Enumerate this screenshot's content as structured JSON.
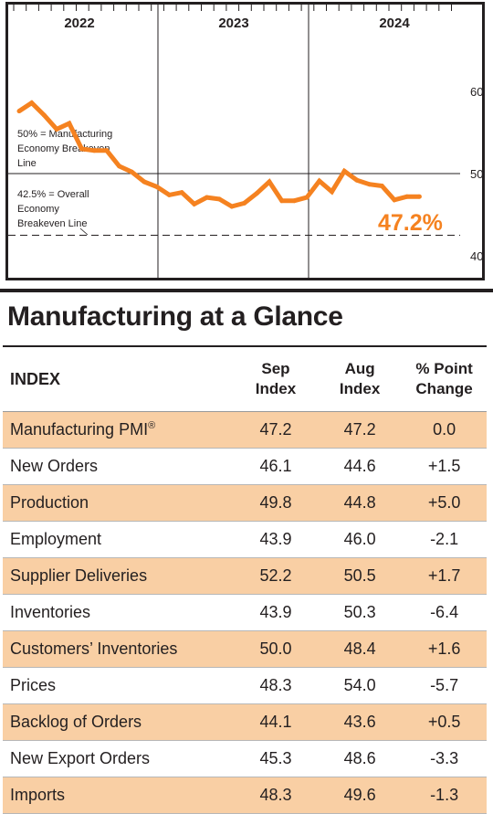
{
  "chart_data": {
    "type": "line",
    "year_labels": [
      "2022",
      "2023",
      "2024"
    ],
    "y_ticks": [
      "60",
      "50",
      "40"
    ],
    "ylim": [
      38,
      66
    ],
    "x_range": [
      "2022-01",
      "2024-12"
    ],
    "grid": true,
    "reference_lines": [
      {
        "value": 50,
        "label": [
          "50% = Manufacturing",
          "Economy Breakeven",
          "Line"
        ],
        "style": "solid"
      },
      {
        "value": 42.5,
        "label": [
          "42.5% = Overall",
          "Economy",
          "Breakeven Line"
        ],
        "style": "dashed"
      }
    ],
    "latest_label": "47.2%",
    "line_color": "#f58220",
    "series": [
      {
        "x": [
          "2022-01",
          "2022-02",
          "2022-03",
          "2022-04",
          "2022-05",
          "2022-06",
          "2022-07",
          "2022-08",
          "2022-09",
          "2022-10",
          "2022-11",
          "2022-12",
          "2023-01",
          "2023-02",
          "2023-03",
          "2023-04",
          "2023-05",
          "2023-06",
          "2023-07",
          "2023-08",
          "2023-09",
          "2023-10",
          "2023-11",
          "2023-12",
          "2024-01",
          "2024-02",
          "2024-03",
          "2024-04",
          "2024-05",
          "2024-06",
          "2024-07",
          "2024-08",
          "2024-09"
        ],
        "y": [
          57.6,
          58.6,
          57.1,
          55.4,
          56.1,
          53.0,
          52.8,
          52.8,
          50.9,
          50.2,
          49.0,
          48.4,
          47.4,
          47.7,
          46.3,
          47.1,
          46.9,
          46.0,
          46.4,
          47.6,
          49.0,
          46.7,
          46.7,
          47.1,
          49.1,
          47.8,
          50.3,
          49.2,
          48.7,
          48.5,
          46.8,
          47.2,
          47.2
        ]
      }
    ]
  },
  "table": {
    "title": "Manufacturing at a Glance",
    "headers": {
      "index": "INDEX",
      "sep": [
        "Sep",
        "Index"
      ],
      "aug": [
        "Aug",
        "Index"
      ],
      "change": [
        "% Point",
        "Change"
      ]
    },
    "rows": [
      {
        "name": "Manufacturing PMI",
        "sup": "®",
        "sep": "47.2",
        "aug": "47.2",
        "change": "0.0"
      },
      {
        "name": "New Orders",
        "sep": "46.1",
        "aug": "44.6",
        "change": "+1.5"
      },
      {
        "name": "Production",
        "sep": "49.8",
        "aug": "44.8",
        "change": "+5.0"
      },
      {
        "name": "Employment",
        "sep": "43.9",
        "aug": "46.0",
        "change": "-2.1"
      },
      {
        "name": "Supplier Deliveries",
        "sep": "52.2",
        "aug": "50.5",
        "change": "+1.7"
      },
      {
        "name": "Inventories",
        "sep": "43.9",
        "aug": "50.3",
        "change": "-6.4"
      },
      {
        "name": "Customers’ Inventories",
        "sep": "50.0",
        "aug": "48.4",
        "change": "+1.6"
      },
      {
        "name": "Prices",
        "sep": "48.3",
        "aug": "54.0",
        "change": "-5.7"
      },
      {
        "name": "Backlog of Orders",
        "sep": "44.1",
        "aug": "43.6",
        "change": "+0.5"
      },
      {
        "name": "New Export Orders",
        "sep": "45.3",
        "aug": "48.6",
        "change": "-3.3"
      },
      {
        "name": "Imports",
        "sep": "48.3",
        "aug": "49.6",
        "change": "-1.3"
      }
    ],
    "shade_color": "#f9cfa4"
  }
}
